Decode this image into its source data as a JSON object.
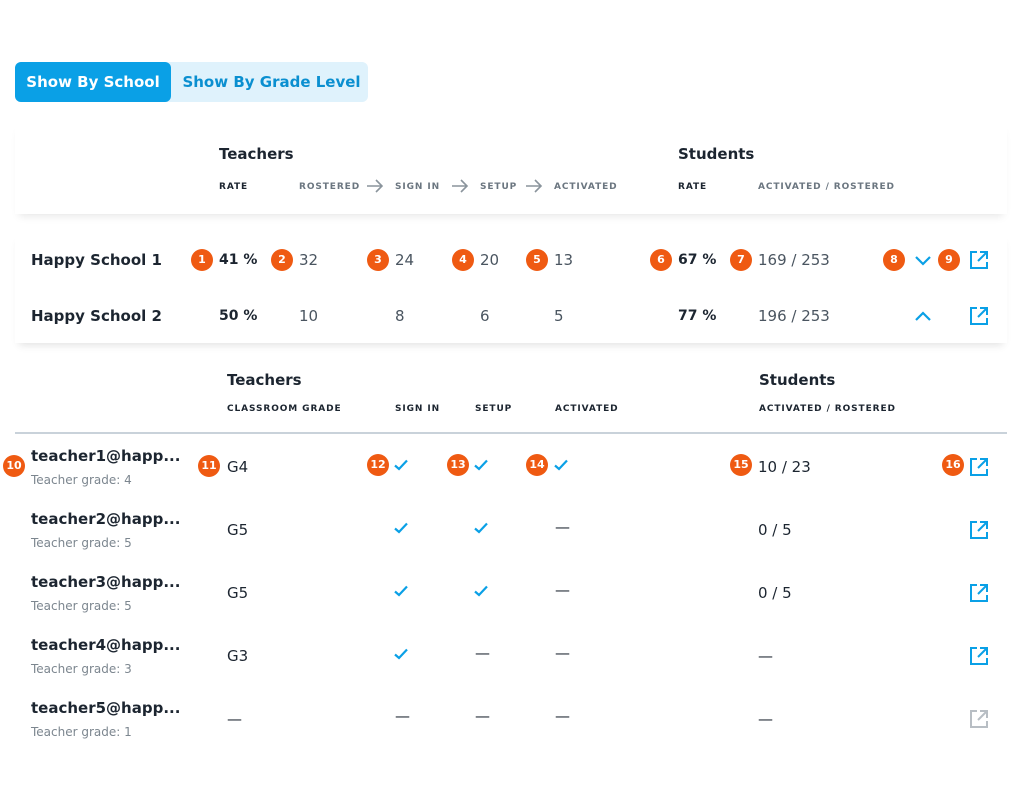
{
  "toggle": {
    "by_school": "Show By School",
    "by_grade": "Show By Grade Level"
  },
  "summary_header": {
    "teachers_title": "Teachers",
    "students_title": "Students",
    "cols": {
      "rate": "RATE",
      "rostered": "ROSTERED",
      "sign_in": "SIGN IN",
      "setup": "SETUP",
      "activated": "ACTIVATED",
      "student_rate": "RATE",
      "activated_rostered": "ACTIVATED / ROSTERED"
    }
  },
  "schools": [
    {
      "name": "Happy School 1",
      "rate": "41 %",
      "rostered": "32",
      "sign_in": "24",
      "setup": "20",
      "activated": "13",
      "student_rate": "67 %",
      "student_ratio": "169 / 253",
      "expand_icon": "chevron-down-icon"
    },
    {
      "name": "Happy School 2",
      "rate": "50 %",
      "rostered": "10",
      "sign_in": "8",
      "setup": "6",
      "activated": "5",
      "student_rate": "77 %",
      "student_ratio": "196 / 253",
      "expand_icon": "chevron-up-icon"
    }
  ],
  "detail_header": {
    "teachers_title": "Teachers",
    "students_title": "Students",
    "cols": {
      "classroom_grade": "CLASSROOM GRADE",
      "sign_in": "SIGN IN",
      "setup": "SETUP",
      "activated": "ACTIVATED",
      "activated_rostered": "ACTIVATED / ROSTERED"
    }
  },
  "teachers": [
    {
      "email": "teacher1@happ...",
      "grade_label": "Teacher grade: 4",
      "classroom_grade": "G4",
      "sign_in": true,
      "setup": true,
      "activated": true,
      "students": "10 / 23",
      "link_enabled": true
    },
    {
      "email": "teacher2@happ...",
      "grade_label": "Teacher grade: 5",
      "classroom_grade": "G5",
      "sign_in": true,
      "setup": true,
      "activated": false,
      "students": "0 / 5",
      "link_enabled": true
    },
    {
      "email": "teacher3@happ...",
      "grade_label": "Teacher grade: 5",
      "classroom_grade": "G5",
      "sign_in": true,
      "setup": true,
      "activated": false,
      "students": "0 / 5",
      "link_enabled": true
    },
    {
      "email": "teacher4@happ...",
      "grade_label": "Teacher grade: 3",
      "classroom_grade": "G3",
      "sign_in": true,
      "setup": false,
      "activated": false,
      "students": "—",
      "link_enabled": true
    },
    {
      "email": "teacher5@happ...",
      "grade_label": "Teacher grade: 1",
      "classroom_grade": "—",
      "sign_in": false,
      "setup": false,
      "activated": false,
      "students": "—",
      "link_enabled": false
    }
  ],
  "empty_value": "—",
  "badges": [
    "1",
    "2",
    "3",
    "4",
    "5",
    "6",
    "7",
    "8",
    "9",
    "10",
    "11",
    "12",
    "13",
    "14",
    "15",
    "16"
  ],
  "colors": {
    "accent": "#0aa0e6",
    "badge": "#ef5a12",
    "disabled_icon": "#b8bec4"
  }
}
